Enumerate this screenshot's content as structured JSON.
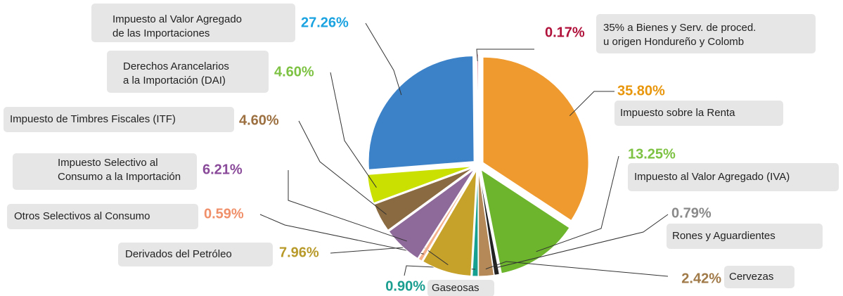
{
  "chart_data": {
    "type": "pie",
    "categories": [
      [
        "Impuesto sobre la Renta"
      ],
      [
        "Impuesto al Valor Agregado (IVA)"
      ],
      [
        "Rones y Aguardientes"
      ],
      [
        "Cervezas"
      ],
      [
        "Gaseosas"
      ],
      [
        "Derivados del Petróleo"
      ],
      [
        "Otros Selectivos al Consumo"
      ],
      [
        "Impuesto Selectivo al",
        "Consumo a la Importación"
      ],
      [
        "Impuesto de Timbres Fiscales (ITF)"
      ],
      [
        "Derechos Arancelarios",
        "a la Importación (DAI)"
      ],
      [
        "Impuesto al Valor Agregado",
        "de las Importaciones"
      ],
      [
        "35% a Bienes y Serv. de proced.",
        "u origen Hondureño y Colomb"
      ]
    ],
    "values": [
      35.8,
      13.25,
      0.79,
      2.42,
      0.9,
      7.96,
      0.59,
      6.21,
      4.6,
      4.6,
      27.26,
      0.17
    ],
    "value_labels": [
      "35.80%",
      "13.25%",
      "0.79%",
      "2.42%",
      "0.90%",
      "7.96%",
      "0.59%",
      "6.21%",
      "4.60%",
      "4.60%",
      "27.26%",
      "0.17%"
    ],
    "colors": [
      "#ee9a2e",
      "#6cb52c",
      "#222222",
      "#b58a58",
      "#15a08f",
      "#c7a22a",
      "#f3b08a",
      "#8e6a9a",
      "#8a6a40",
      "#c9e000",
      "#3c82c8",
      "#b0123b"
    ],
    "label_colors": [
      "#e8960c",
      "#7dc242",
      "#8a8a8a",
      "#a07a48",
      "#1a9e8f",
      "#b89a2a",
      "#f0906a",
      "#8a4a9a",
      "#9c7040",
      "#7dc242",
      "#1aa3e0",
      "#b0123b"
    ]
  }
}
